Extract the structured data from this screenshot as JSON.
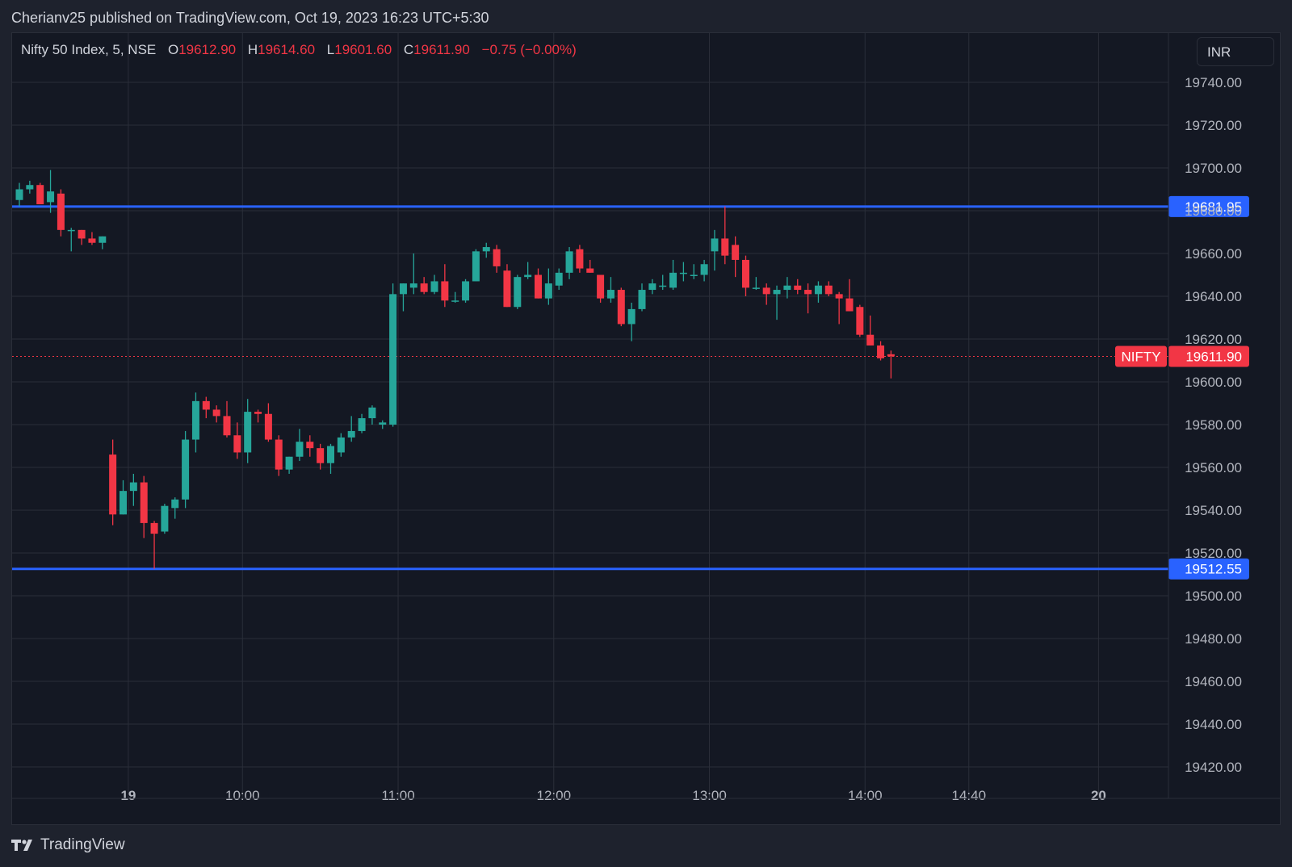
{
  "header": {
    "published_text": "Cherianv25 published on TradingView.com, Oct 19, 2023 16:23 UTC+5:30"
  },
  "legend": {
    "symbol": "Nifty 50 Index, 5, NSE",
    "open_label": "O",
    "open": "19612.90",
    "high_label": "H",
    "high": "19614.60",
    "low_label": "L",
    "low": "19601.60",
    "close_label": "C",
    "close": "19611.90",
    "change": "−0.75 (−0.00%)"
  },
  "currency": "INR",
  "footer": {
    "brand": "TradingView",
    "logo_icon": "tradingview-logo-icon"
  },
  "colors": {
    "up": "#26a69a",
    "down": "#f23645",
    "level_line": "#2962ff",
    "background": "#141823",
    "grid": "#2a2e39"
  },
  "chart_data": {
    "type": "candlestick",
    "ylim": [
      19410,
      19750
    ],
    "y_ticks": [
      "19740.00",
      "19720.00",
      "19700.00",
      "19680.00",
      "19660.00",
      "19640.00",
      "19620.00",
      "19600.00",
      "19580.00",
      "19560.00",
      "19540.00",
      "19520.00",
      "19500.00",
      "19480.00",
      "19460.00",
      "19440.00",
      "19420.00"
    ],
    "x_ticks": [
      {
        "label": "19",
        "index": 10.5,
        "bold": true
      },
      {
        "label": "10:00",
        "index": 21.5,
        "bold": false
      },
      {
        "label": "11:00",
        "index": 36.5,
        "bold": false
      },
      {
        "label": "12:00",
        "index": 51.5,
        "bold": false
      },
      {
        "label": "13:00",
        "index": 66.5,
        "bold": false
      },
      {
        "label": "14:00",
        "index": 81.5,
        "bold": false
      },
      {
        "label": "14:40",
        "index": 91.5,
        "bold": false
      },
      {
        "label": "20",
        "index": 104,
        "bold": true
      }
    ],
    "horizontal_levels": [
      {
        "value": 19681.95,
        "label": "19681.95"
      },
      {
        "value": 19512.55,
        "label": "19512.55"
      }
    ],
    "last_price": {
      "value": 19611.9,
      "label": "19611.90",
      "symbol": "NIFTY"
    },
    "candles": [
      {
        "o": 19685,
        "h": 19693,
        "l": 19682,
        "c": 19690
      },
      {
        "o": 19690,
        "h": 19694,
        "l": 19688,
        "c": 19692
      },
      {
        "o": 19692,
        "h": 19693,
        "l": 19683,
        "c": 19683
      },
      {
        "o": 19684,
        "h": 19699,
        "l": 19679,
        "c": 19689
      },
      {
        "o": 19688,
        "h": 19690,
        "l": 19668,
        "c": 19671
      },
      {
        "o": 19671,
        "h": 19672,
        "l": 19661,
        "c": 19671
      },
      {
        "o": 19671,
        "h": 19671,
        "l": 19664,
        "c": 19667
      },
      {
        "o": 19667,
        "h": 19670,
        "l": 19664,
        "c": 19665
      },
      {
        "o": 19665,
        "h": 19668,
        "l": 19662,
        "c": 19668
      },
      {
        "o": 19566,
        "h": 19573,
        "l": 19533,
        "c": 19538
      },
      {
        "o": 19538,
        "h": 19554,
        "l": 19538,
        "c": 19549
      },
      {
        "o": 19549,
        "h": 19557,
        "l": 19542,
        "c": 19553
      },
      {
        "o": 19553,
        "h": 19556,
        "l": 19527,
        "c": 19534
      },
      {
        "o": 19534,
        "h": 19535,
        "l": 19512.55,
        "c": 19529
      },
      {
        "o": 19530,
        "h": 19543,
        "l": 19529,
        "c": 19542
      },
      {
        "o": 19541,
        "h": 19546,
        "l": 19536,
        "c": 19545
      },
      {
        "o": 19545,
        "h": 19577,
        "l": 19541,
        "c": 19573
      },
      {
        "o": 19573,
        "h": 19595,
        "l": 19567,
        "c": 19591
      },
      {
        "o": 19591,
        "h": 19593,
        "l": 19583,
        "c": 19587
      },
      {
        "o": 19587,
        "h": 19589,
        "l": 19581,
        "c": 19584
      },
      {
        "o": 19584,
        "h": 19591,
        "l": 19574,
        "c": 19575
      },
      {
        "o": 19575,
        "h": 19581,
        "l": 19564,
        "c": 19567
      },
      {
        "o": 19567,
        "h": 19592,
        "l": 19562,
        "c": 19586
      },
      {
        "o": 19586,
        "h": 19587,
        "l": 19581,
        "c": 19585
      },
      {
        "o": 19585,
        "h": 19590,
        "l": 19572,
        "c": 19573
      },
      {
        "o": 19573,
        "h": 19575,
        "l": 19556,
        "c": 19559
      },
      {
        "o": 19559,
        "h": 19565,
        "l": 19557,
        "c": 19565
      },
      {
        "o": 19565,
        "h": 19578,
        "l": 19563,
        "c": 19572
      },
      {
        "o": 19572,
        "h": 19575,
        "l": 19565,
        "c": 19569
      },
      {
        "o": 19569,
        "h": 19571,
        "l": 19559,
        "c": 19562
      },
      {
        "o": 19562,
        "h": 19571,
        "l": 19557,
        "c": 19570
      },
      {
        "o": 19567,
        "h": 19576,
        "l": 19565,
        "c": 19574
      },
      {
        "o": 19574,
        "h": 19584,
        "l": 19572,
        "c": 19577
      },
      {
        "o": 19577,
        "h": 19585,
        "l": 19576,
        "c": 19583
      },
      {
        "o": 19583,
        "h": 19589,
        "l": 19580,
        "c": 19588
      },
      {
        "o": 19580,
        "h": 19582,
        "l": 19578,
        "c": 19581
      },
      {
        "o": 19580,
        "h": 19646,
        "l": 19579,
        "c": 19641
      },
      {
        "o": 19641,
        "h": 19646,
        "l": 19633,
        "c": 19646
      },
      {
        "o": 19644,
        "h": 19660,
        "l": 19641,
        "c": 19646
      },
      {
        "o": 19646,
        "h": 19649,
        "l": 19641,
        "c": 19642
      },
      {
        "o": 19642,
        "h": 19650,
        "l": 19641,
        "c": 19647
      },
      {
        "o": 19647,
        "h": 19655,
        "l": 19635,
        "c": 19638
      },
      {
        "o": 19638,
        "h": 19642,
        "l": 19637,
        "c": 19638
      },
      {
        "o": 19638,
        "h": 19648,
        "l": 19637,
        "c": 19647
      },
      {
        "o": 19647,
        "h": 19662,
        "l": 19647,
        "c": 19661
      },
      {
        "o": 19661,
        "h": 19665,
        "l": 19658,
        "c": 19663
      },
      {
        "o": 19662,
        "h": 19664,
        "l": 19651,
        "c": 19654
      },
      {
        "o": 19652,
        "h": 19655,
        "l": 19635,
        "c": 19635
      },
      {
        "o": 19635,
        "h": 19650,
        "l": 19634,
        "c": 19649
      },
      {
        "o": 19649,
        "h": 19656,
        "l": 19648,
        "c": 19650
      },
      {
        "o": 19650,
        "h": 19653,
        "l": 19639,
        "c": 19639
      },
      {
        "o": 19639,
        "h": 19653,
        "l": 19636,
        "c": 19646
      },
      {
        "o": 19645,
        "h": 19653,
        "l": 19643,
        "c": 19651
      },
      {
        "o": 19651,
        "h": 19663,
        "l": 19648,
        "c": 19661
      },
      {
        "o": 19662,
        "h": 19664,
        "l": 19651,
        "c": 19653
      },
      {
        "o": 19653,
        "h": 19657,
        "l": 19651,
        "c": 19651
      },
      {
        "o": 19650,
        "h": 19650,
        "l": 19637,
        "c": 19639
      },
      {
        "o": 19639,
        "h": 19649,
        "l": 19637,
        "c": 19643
      },
      {
        "o": 19643,
        "h": 19644,
        "l": 19626,
        "c": 19627
      },
      {
        "o": 19627,
        "h": 19637,
        "l": 19619,
        "c": 19634
      },
      {
        "o": 19634,
        "h": 19646,
        "l": 19633,
        "c": 19643
      },
      {
        "o": 19643,
        "h": 19648,
        "l": 19641,
        "c": 19646
      },
      {
        "o": 19645,
        "h": 19650,
        "l": 19643,
        "c": 19645
      },
      {
        "o": 19644,
        "h": 19657,
        "l": 19643,
        "c": 19651
      },
      {
        "o": 19651,
        "h": 19656,
        "l": 19647,
        "c": 19651
      },
      {
        "o": 19650,
        "h": 19655,
        "l": 19648,
        "c": 19650
      },
      {
        "o": 19650,
        "h": 19657,
        "l": 19647,
        "c": 19655
      },
      {
        "o": 19661,
        "h": 19671,
        "l": 19652,
        "c": 19667
      },
      {
        "o": 19667,
        "h": 19682,
        "l": 19655,
        "c": 19659
      },
      {
        "o": 19664,
        "h": 19668,
        "l": 19649,
        "c": 19657
      },
      {
        "o": 19657,
        "h": 19659,
        "l": 19640,
        "c": 19644
      },
      {
        "o": 19644,
        "h": 19649,
        "l": 19643,
        "c": 19644
      },
      {
        "o": 19644,
        "h": 19646,
        "l": 19636,
        "c": 19641
      },
      {
        "o": 19641,
        "h": 19645,
        "l": 19629,
        "c": 19643
      },
      {
        "o": 19643,
        "h": 19649,
        "l": 19639,
        "c": 19645
      },
      {
        "o": 19645,
        "h": 19648,
        "l": 19641,
        "c": 19643
      },
      {
        "o": 19643,
        "h": 19646,
        "l": 19632,
        "c": 19641
      },
      {
        "o": 19641,
        "h": 19647,
        "l": 19637,
        "c": 19645
      },
      {
        "o": 19645,
        "h": 19647,
        "l": 19640,
        "c": 19641
      },
      {
        "o": 19641,
        "h": 19642,
        "l": 19627,
        "c": 19639
      },
      {
        "o": 19639,
        "h": 19648,
        "l": 19633,
        "c": 19633
      },
      {
        "o": 19635,
        "h": 19636,
        "l": 19621,
        "c": 19622
      },
      {
        "o": 19622,
        "h": 19631,
        "l": 19617,
        "c": 19617
      },
      {
        "o": 19617,
        "h": 19619,
        "l": 19610,
        "c": 19611
      },
      {
        "o": 19612.9,
        "h": 19614.6,
        "l": 19601.6,
        "c": 19611.9
      }
    ],
    "x_index_mapping_note": ""
  }
}
